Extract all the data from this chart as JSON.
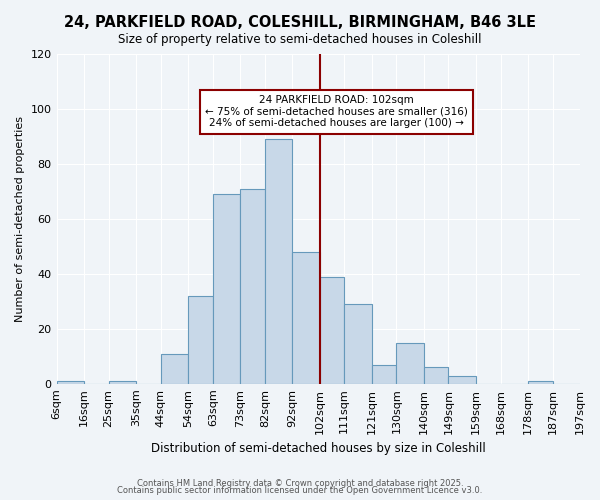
{
  "title": "24, PARKFIELD ROAD, COLESHILL, BIRMINGHAM, B46 3LE",
  "subtitle": "Size of property relative to semi-detached houses in Coleshill",
  "xlabel": "Distribution of semi-detached houses by size in Coleshill",
  "ylabel": "Number of semi-detached properties",
  "bins": [
    6,
    16,
    25,
    35,
    44,
    54,
    63,
    73,
    82,
    92,
    102,
    111,
    121,
    130,
    140,
    149,
    159,
    168,
    178,
    187,
    197
  ],
  "bin_labels": [
    "6sqm",
    "16sqm",
    "25sqm",
    "35sqm",
    "44sqm",
    "54sqm",
    "63sqm",
    "73sqm",
    "82sqm",
    "92sqm",
    "102sqm",
    "111sqm",
    "121sqm",
    "130sqm",
    "140sqm",
    "149sqm",
    "159sqm",
    "168sqm",
    "178sqm",
    "187sqm",
    "197sqm"
  ],
  "counts": [
    1,
    0,
    1,
    0,
    11,
    32,
    69,
    71,
    89,
    48,
    39,
    29,
    7,
    15,
    6,
    3,
    0,
    0,
    1,
    0
  ],
  "bar_color": "#c8d8e8",
  "bar_edge_color": "#6699bb",
  "vline_x": 102,
  "vline_color": "#8b0000",
  "annotation_title": "24 PARKFIELD ROAD: 102sqm",
  "annotation_line1": "← 75% of semi-detached houses are smaller (316)",
  "annotation_line2": "24% of semi-detached houses are larger (100) →",
  "annotation_box_color": "#ffffff",
  "annotation_box_edge": "#8b0000",
  "ylim": [
    0,
    120
  ],
  "yticks": [
    0,
    20,
    40,
    60,
    80,
    100,
    120
  ],
  "background_color": "#f0f4f8",
  "footer1": "Contains HM Land Registry data © Crown copyright and database right 2025.",
  "footer2": "Contains public sector information licensed under the Open Government Licence v3.0."
}
